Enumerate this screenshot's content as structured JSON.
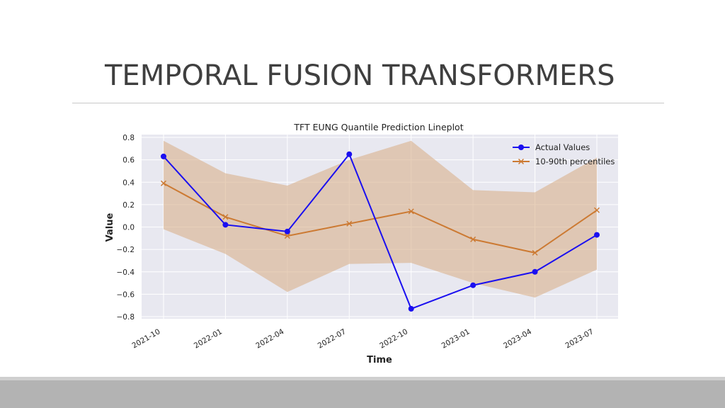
{
  "slide": {
    "title": "TEMPORAL FUSION TRANSFORMERS"
  },
  "colors": {
    "actual": "#1a0ff0",
    "percentile": "#cc7a33",
    "band": "#d9b08c",
    "plot_bg": "#e8e8f0",
    "grid": "#ffffff",
    "footer": "#b3b3b3"
  },
  "chart_data": {
    "type": "line",
    "title": "TFT EUNG Quantile Prediction Lineplot",
    "xlabel": "Time",
    "ylabel": "Value",
    "categories": [
      "2021-10",
      "2022-01",
      "2022-04",
      "2022-07",
      "2022-10",
      "2023-01",
      "2023-04",
      "2023-07"
    ],
    "ylim": [
      -0.8,
      0.8
    ],
    "yticks": [
      "0.8",
      "0.6",
      "0.4",
      "0.2",
      "0.0",
      "−0.2",
      "−0.4",
      "−0.6",
      "−0.8"
    ],
    "series": [
      {
        "name": "Actual Values",
        "marker": "circle",
        "values": [
          0.63,
          0.02,
          -0.04,
          0.65,
          -0.73,
          -0.52,
          -0.4,
          -0.07
        ]
      },
      {
        "name": "10-90th percentiles",
        "marker": "x",
        "values": [
          0.39,
          0.09,
          -0.08,
          0.03,
          0.14,
          -0.11,
          -0.23,
          0.15
        ]
      }
    ],
    "band": {
      "upper": [
        0.77,
        0.48,
        0.37,
        0.6,
        0.77,
        0.33,
        0.31,
        0.62
      ],
      "lower": [
        -0.02,
        -0.24,
        -0.58,
        -0.33,
        -0.32,
        -0.5,
        -0.63,
        -0.38
      ]
    },
    "grid": true,
    "legend_position": "top-right"
  }
}
